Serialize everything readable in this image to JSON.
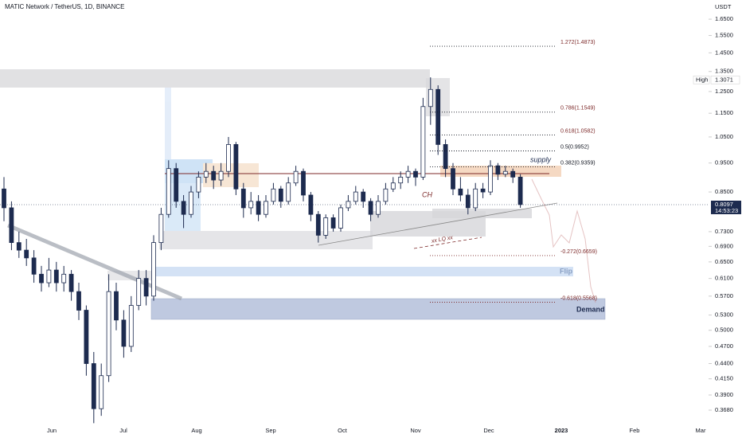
{
  "chart_data": {
    "type": "candlestick",
    "title": "MATIC Network / TetherUS, 1D, BINANCE",
    "y_axis_label": "USDT",
    "log_scale": true,
    "ylim": [
      0.35,
      1.776
    ],
    "yticks": [
      {
        "value": 1.65,
        "label": "1.6500"
      },
      {
        "value": 1.55,
        "label": "1.5500"
      },
      {
        "value": 1.45,
        "label": "1.4500"
      },
      {
        "value": 1.35,
        "label": "1.3500"
      },
      {
        "value": 1.25,
        "label": "1.2500"
      },
      {
        "value": 1.15,
        "label": "1.1500"
      },
      {
        "value": 1.05,
        "label": "1.0500"
      },
      {
        "value": 0.95,
        "label": "0.9500"
      },
      {
        "value": 0.85,
        "label": "0.8500"
      },
      {
        "value": 0.73,
        "label": "0.7300"
      },
      {
        "value": 0.69,
        "label": "0.6900"
      },
      {
        "value": 0.65,
        "label": "0.6500"
      },
      {
        "value": 0.61,
        "label": "0.6100"
      },
      {
        "value": 0.57,
        "label": "0.5700"
      },
      {
        "value": 0.53,
        "label": "0.5300"
      },
      {
        "value": 0.5,
        "label": "0.5000"
      },
      {
        "value": 0.47,
        "label": "0.4700"
      },
      {
        "value": 0.44,
        "label": "0.4400"
      },
      {
        "value": 0.415,
        "label": "0.4150"
      },
      {
        "value": 0.39,
        "label": "0.3900"
      },
      {
        "value": 0.368,
        "label": "0.3680"
      }
    ],
    "x_labels": [
      "Jun",
      "Jul",
      "Aug",
      "Sep",
      "Oct",
      "Nov",
      "Dec",
      "2023",
      "Feb",
      "Mar"
    ],
    "up_color": "#ffffff",
    "down_color": "#1d2b4f",
    "edge_color": "#1d2b4f",
    "open": [
      0.86,
      0.8,
      0.7,
      0.68,
      0.66,
      0.62,
      0.6,
      0.63,
      0.6,
      0.62,
      0.58,
      0.54,
      0.44,
      0.37,
      0.42,
      0.58,
      0.52,
      0.47,
      0.55,
      0.61,
      0.57,
      0.7,
      0.78,
      0.93,
      0.82,
      0.78,
      0.85,
      0.9,
      0.92,
      0.89,
      0.92,
      1.02,
      0.86,
      0.8,
      0.82,
      0.78,
      0.82,
      0.86,
      0.82,
      0.88,
      0.92,
      0.84,
      0.78,
      0.72,
      0.77,
      0.74,
      0.8,
      0.82,
      0.85,
      0.82,
      0.78,
      0.82,
      0.86,
      0.88,
      0.9,
      0.92,
      0.9,
      1.18,
      1.26,
      1.02,
      0.93,
      0.86,
      0.84,
      0.8,
      0.86,
      0.85,
      0.94,
      0.91,
      0.92,
      0.9
    ],
    "high": [
      0.9,
      0.82,
      0.73,
      0.71,
      0.68,
      0.64,
      0.66,
      0.65,
      0.64,
      0.63,
      0.6,
      0.55,
      0.46,
      0.44,
      0.62,
      0.6,
      0.54,
      0.57,
      0.63,
      0.63,
      0.72,
      0.8,
      0.96,
      0.95,
      0.84,
      0.87,
      0.92,
      0.95,
      0.94,
      0.95,
      1.05,
      1.03,
      0.88,
      0.85,
      0.84,
      0.84,
      0.88,
      0.87,
      0.9,
      0.94,
      0.93,
      0.85,
      0.79,
      0.78,
      0.78,
      0.81,
      0.84,
      0.87,
      0.86,
      0.83,
      0.84,
      0.88,
      0.9,
      0.92,
      0.94,
      0.93,
      1.22,
      1.32,
      1.28,
      1.04,
      0.95,
      0.9,
      0.86,
      0.88,
      0.88,
      0.96,
      0.95,
      0.94,
      0.93,
      0.91
    ],
    "low": [
      0.76,
      0.68,
      0.66,
      0.64,
      0.6,
      0.58,
      0.59,
      0.58,
      0.58,
      0.56,
      0.52,
      0.42,
      0.35,
      0.36,
      0.41,
      0.5,
      0.45,
      0.46,
      0.54,
      0.55,
      0.56,
      0.68,
      0.77,
      0.8,
      0.74,
      0.77,
      0.83,
      0.88,
      0.86,
      0.87,
      0.9,
      0.84,
      0.77,
      0.78,
      0.76,
      0.77,
      0.81,
      0.8,
      0.81,
      0.87,
      0.82,
      0.76,
      0.7,
      0.71,
      0.73,
      0.73,
      0.79,
      0.81,
      0.8,
      0.76,
      0.77,
      0.81,
      0.85,
      0.86,
      0.88,
      0.87,
      0.89,
      1.1,
      0.98,
      0.9,
      0.84,
      0.82,
      0.78,
      0.79,
      0.83,
      0.84,
      0.89,
      0.9,
      0.88,
      0.8
    ],
    "close": [
      0.8,
      0.7,
      0.68,
      0.66,
      0.62,
      0.6,
      0.63,
      0.6,
      0.62,
      0.58,
      0.54,
      0.44,
      0.37,
      0.42,
      0.58,
      0.52,
      0.47,
      0.55,
      0.61,
      0.57,
      0.7,
      0.78,
      0.93,
      0.82,
      0.78,
      0.85,
      0.9,
      0.92,
      0.89,
      0.92,
      1.02,
      0.86,
      0.8,
      0.82,
      0.78,
      0.82,
      0.86,
      0.82,
      0.88,
      0.92,
      0.84,
      0.78,
      0.72,
      0.77,
      0.74,
      0.8,
      0.82,
      0.85,
      0.82,
      0.78,
      0.82,
      0.86,
      0.88,
      0.9,
      0.92,
      0.9,
      1.18,
      1.26,
      1.02,
      0.93,
      0.86,
      0.84,
      0.8,
      0.86,
      0.85,
      0.94,
      0.91,
      0.92,
      0.9,
      0.81
    ],
    "last_price": {
      "value": 0.8097,
      "label": "0.8097",
      "countdown": "14:53:23"
    },
    "high_marker": {
      "text": "High",
      "value": 1.3071,
      "label": "1.3071"
    },
    "fib_levels": [
      {
        "label": "1.272(1.4873)",
        "value": 1.4873
      },
      {
        "label": "0.786(1.1549)",
        "value": 1.1549
      },
      {
        "label": "0.618(1.0582)",
        "value": 1.0582
      },
      {
        "label": "0.5(0.9952)",
        "value": 0.9952
      },
      {
        "label": "0.382(0.9359)",
        "value": 0.9359
      },
      {
        "label": "-0.272(0.6659)",
        "value": 0.6659
      },
      {
        "label": "-0.618(0.5568)",
        "value": 0.5568
      }
    ],
    "annotations": {
      "supply": "supply",
      "ch": "CH",
      "lq": "xx LQ xx",
      "flip": "Flip",
      "demand": "Demand"
    }
  }
}
